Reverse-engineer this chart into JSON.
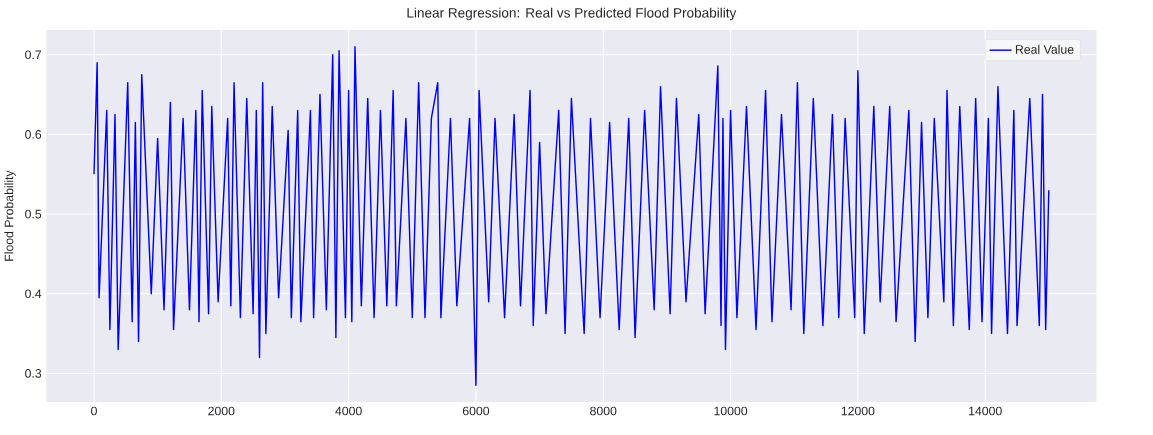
{
  "chart_data": {
    "type": "line",
    "title": "Linear Regression: Real vs Predicted Flood Probability",
    "ylabel": "Flood Probability",
    "x": [
      0,
      50,
      80,
      200,
      250,
      330,
      380,
      530,
      600,
      650,
      700,
      750,
      900,
      1000,
      1100,
      1200,
      1250,
      1400,
      1500,
      1600,
      1650,
      1700,
      1800,
      1850,
      1950,
      2100,
      2150,
      2200,
      2300,
      2400,
      2500,
      2550,
      2600,
      2650,
      2700,
      2800,
      2900,
      3050,
      3100,
      3200,
      3250,
      3400,
      3450,
      3550,
      3650,
      3750,
      3800,
      3850,
      3950,
      4000,
      4050,
      4100,
      4200,
      4300,
      4400,
      4500,
      4600,
      4700,
      4750,
      4900,
      5000,
      5100,
      5200,
      5300,
      5400,
      5450,
      5600,
      5700,
      5900,
      6000,
      6050,
      6200,
      6300,
      6450,
      6600,
      6700,
      6850,
      6900,
      7000,
      7100,
      7300,
      7400,
      7500,
      7700,
      7800,
      7950,
      8100,
      8250,
      8400,
      8500,
      8650,
      8800,
      8900,
      9050,
      9150,
      9300,
      9500,
      9600,
      9800,
      9850,
      9880,
      9920,
      10000,
      10100,
      10250,
      10400,
      10550,
      10650,
      10800,
      10950,
      11050,
      11150,
      11300,
      11450,
      11600,
      11700,
      11800,
      11950,
      12000,
      12100,
      12250,
      12350,
      12500,
      12600,
      12800,
      12900,
      13000,
      13100,
      13200,
      13350,
      13400,
      13500,
      13600,
      13750,
      13850,
      13950,
      14050,
      14100,
      14200,
      14350,
      14450,
      14500,
      14700,
      14850,
      14900,
      14950,
      14999
    ],
    "series": [
      {
        "name": "Real Value",
        "color": "#0000ff",
        "values": [
          0.55,
          0.69,
          0.395,
          0.63,
          0.355,
          0.625,
          0.33,
          0.665,
          0.365,
          0.615,
          0.34,
          0.675,
          0.4,
          0.595,
          0.38,
          0.64,
          0.355,
          0.62,
          0.38,
          0.63,
          0.365,
          0.655,
          0.375,
          0.635,
          0.39,
          0.62,
          0.385,
          0.665,
          0.37,
          0.645,
          0.375,
          0.63,
          0.32,
          0.665,
          0.35,
          0.635,
          0.395,
          0.605,
          0.37,
          0.63,
          0.365,
          0.63,
          0.37,
          0.65,
          0.38,
          0.7,
          0.345,
          0.705,
          0.37,
          0.655,
          0.365,
          0.71,
          0.385,
          0.645,
          0.37,
          0.63,
          0.385,
          0.655,
          0.385,
          0.62,
          0.37,
          0.665,
          0.37,
          0.62,
          0.665,
          0.37,
          0.62,
          0.385,
          0.62,
          0.285,
          0.655,
          0.39,
          0.62,
          0.37,
          0.625,
          0.385,
          0.655,
          0.36,
          0.59,
          0.375,
          0.63,
          0.35,
          0.645,
          0.35,
          0.62,
          0.37,
          0.615,
          0.355,
          0.62,
          0.345,
          0.63,
          0.38,
          0.66,
          0.375,
          0.645,
          0.39,
          0.625,
          0.375,
          0.686,
          0.36,
          0.62,
          0.33,
          0.63,
          0.37,
          0.635,
          0.355,
          0.655,
          0.365,
          0.625,
          0.38,
          0.665,
          0.35,
          0.645,
          0.36,
          0.625,
          0.37,
          0.62,
          0.37,
          0.68,
          0.35,
          0.635,
          0.39,
          0.635,
          0.365,
          0.63,
          0.34,
          0.615,
          0.37,
          0.62,
          0.39,
          0.655,
          0.36,
          0.635,
          0.355,
          0.645,
          0.365,
          0.62,
          0.35,
          0.66,
          0.35,
          0.63,
          0.36,
          0.645,
          0.36,
          0.65,
          0.355,
          0.53
        ]
      }
    ],
    "xlim": [
      -750,
      15749
    ],
    "ylim": [
      0.264,
      0.731
    ],
    "xticks": [
      0,
      2000,
      4000,
      6000,
      8000,
      10000,
      12000,
      14000
    ],
    "yticks": [
      0.3,
      0.4,
      0.5,
      0.6,
      0.7
    ],
    "grid": true,
    "legend": "top right"
  }
}
